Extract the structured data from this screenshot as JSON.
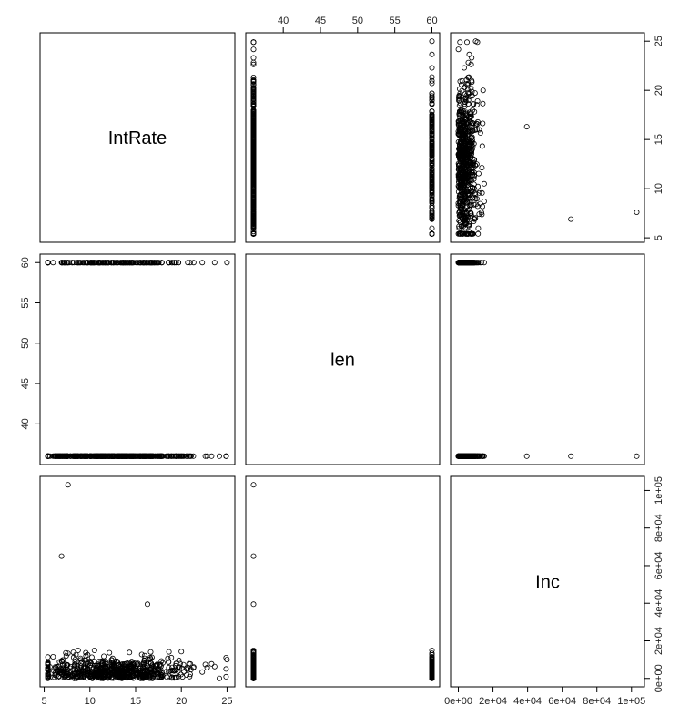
{
  "chart_data": {
    "type": "scatter-matrix",
    "variables": [
      "IntRate",
      "len",
      "Inc"
    ],
    "ranges": {
      "IntRate": [
        5.4,
        25
      ],
      "len": [
        36,
        60
      ],
      "Inc": [
        0,
        103000
      ]
    },
    "ticks": {
      "IntRate": [
        5,
        10,
        15,
        20,
        25
      ],
      "len": [
        40,
        45,
        50,
        55,
        60
      ],
      "Inc": [
        0,
        20000,
        40000,
        60000,
        80000,
        100000
      ]
    },
    "tick_labels": {
      "IntRate": [
        "5",
        "10",
        "15",
        "20",
        "25"
      ],
      "len": [
        "40",
        "45",
        "50",
        "55",
        "60"
      ],
      "Inc": [
        "0e+00",
        "2e+04",
        "4e+04",
        "6e+04",
        "8e+04",
        "1e+05"
      ]
    },
    "notable_points": [
      {
        "IntRate": 7.6,
        "len": 36,
        "Inc": 103000
      },
      {
        "IntRate": 6.9,
        "len": 36,
        "Inc": 65000
      },
      {
        "IntRate": 16.3,
        "len": 36,
        "Inc": 39500
      },
      {
        "IntRate": 24.9,
        "len": 36,
        "Inc": 5000
      },
      {
        "IntRate": 25.0,
        "len": 60,
        "Inc": 10000
      }
    ]
  }
}
